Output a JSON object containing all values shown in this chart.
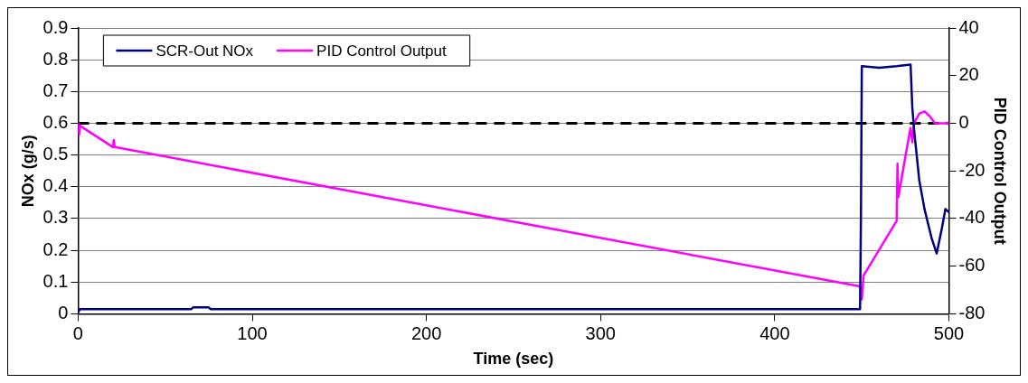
{
  "chart_data": {
    "type": "line",
    "xlabel": "Time (sec)",
    "ylabel": "NOx (g/s)",
    "y2label": "PID Control Output",
    "xlim": [
      0,
      500
    ],
    "xticks": [
      0,
      100,
      200,
      300,
      400,
      500
    ],
    "ylim": [
      0,
      0.9
    ],
    "yticks": [
      0,
      0.1,
      0.2,
      0.3,
      0.4,
      0.5,
      0.6,
      0.7,
      0.8,
      0.9
    ],
    "y2lim": [
      -80,
      40
    ],
    "y2ticks": [
      -80,
      -60,
      -40,
      -20,
      0,
      20,
      40
    ],
    "grid": "y",
    "legend": "top left",
    "marker": "none",
    "line_style": "solid",
    "ref_lines": [
      {
        "axis": "y2",
        "value": 0,
        "color": "#000000",
        "line_style": "dashed"
      }
    ],
    "series": [
      {
        "name": "SCR-Out NOx",
        "color": "#000080",
        "x": [
          0,
          1,
          65,
          66,
          75,
          76,
          449,
          449.5,
          450,
          460,
          470,
          478,
          479,
          480,
          483,
          486,
          490,
          493,
          496,
          498,
          500
        ],
        "values": [
          0.005,
          0.015,
          0.015,
          0.02,
          0.02,
          0.015,
          0.015,
          0.3,
          0.78,
          0.775,
          0.78,
          0.785,
          0.65,
          0.58,
          0.42,
          0.33,
          0.24,
          0.19,
          0.27,
          0.33,
          0.32
        ]
      },
      {
        "name": "PID Control Output",
        "color": "#ff00ff",
        "axis": "y2",
        "x": [
          0,
          0.5,
          1,
          20,
          20.5,
          21,
          449,
          450,
          451,
          470,
          470.5,
          471,
          476,
          478,
          479,
          480,
          483,
          486,
          489,
          492,
          500
        ],
        "values": [
          0,
          -5,
          -1,
          -10,
          -7,
          -10,
          -68.5,
          -74,
          -64,
          -41,
          -17,
          -31,
          -10,
          -2,
          -8,
          0,
          4,
          5,
          3,
          0,
          0
        ]
      }
    ]
  }
}
